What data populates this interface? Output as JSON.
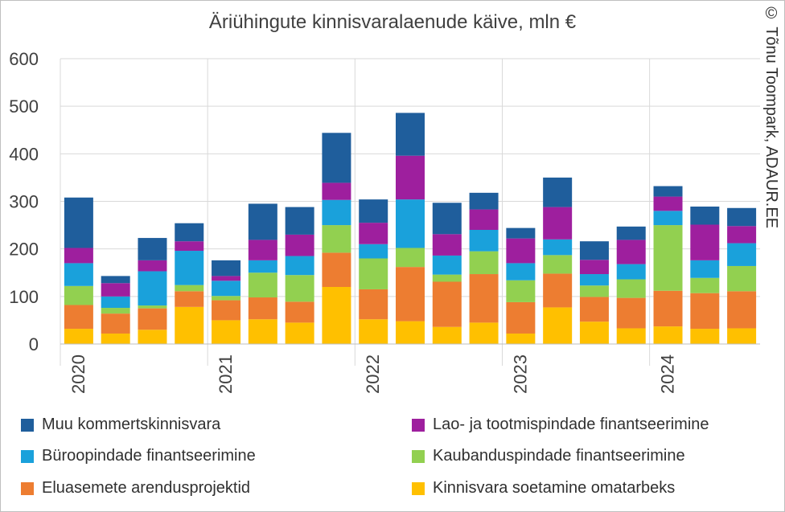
{
  "title": "Äriühingute kinnisvaralaenude käive, mln €",
  "watermark": "© Tõnu Toompark, ADAUR.EE",
  "chart_data": {
    "type": "bar",
    "stacked": true,
    "title": "Äriühingute kinnisvaralaenude käive, mln €",
    "ylim": [
      0,
      600
    ],
    "yticks": [
      0,
      100,
      200,
      300,
      400,
      500,
      600
    ],
    "year_labels": [
      "2020",
      "2021",
      "2022",
      "2023",
      "2024"
    ],
    "grid": true,
    "legend_position": "bottom",
    "series": [
      {
        "name": "Kinnisvara soetamine omatarbeks",
        "color": "#FFC000",
        "values": [
          32,
          22,
          30,
          78,
          50,
          52,
          45,
          120,
          52,
          48,
          36,
          45,
          22,
          77,
          47,
          33,
          37,
          32,
          33
        ]
      },
      {
        "name": "Eluasemete arendusprojektid",
        "color": "#ED7D31",
        "values": [
          50,
          42,
          45,
          33,
          42,
          46,
          44,
          72,
          63,
          114,
          95,
          102,
          66,
          71,
          52,
          64,
          75,
          75,
          78
        ]
      },
      {
        "name": "Kaubanduspindade finantseerimine",
        "color": "#92D050",
        "values": [
          40,
          12,
          6,
          13,
          9,
          52,
          56,
          58,
          65,
          40,
          15,
          48,
          46,
          39,
          24,
          39,
          138,
          32,
          53
        ]
      },
      {
        "name": "Büroopindade finantseerimine",
        "color": "#1AA1DB",
        "values": [
          48,
          24,
          72,
          72,
          32,
          26,
          40,
          53,
          30,
          102,
          40,
          45,
          36,
          33,
          24,
          32,
          30,
          37,
          48
        ]
      },
      {
        "name": "Lao- ja tootmispindade  finantseerimine",
        "color": "#9E1F9E",
        "values": [
          32,
          28,
          23,
          20,
          10,
          43,
          45,
          36,
          45,
          92,
          45,
          43,
          52,
          68,
          30,
          51,
          30,
          75,
          36
        ]
      },
      {
        "name": "Muu kommertskinnisvara",
        "color": "#1F5E9C",
        "values": [
          106,
          15,
          47,
          38,
          33,
          76,
          58,
          105,
          49,
          90,
          66,
          35,
          22,
          62,
          39,
          28,
          22,
          38,
          38
        ]
      }
    ]
  },
  "legend_layout": [
    [
      "Muu kommertskinnisvara",
      "Lao- ja tootmispindade  finantseerimine"
    ],
    [
      "Büroopindade finantseerimine",
      "Kaubanduspindade finantseerimine"
    ],
    [
      "Eluasemete arendusprojektid",
      "Kinnisvara soetamine omatarbeks"
    ]
  ]
}
